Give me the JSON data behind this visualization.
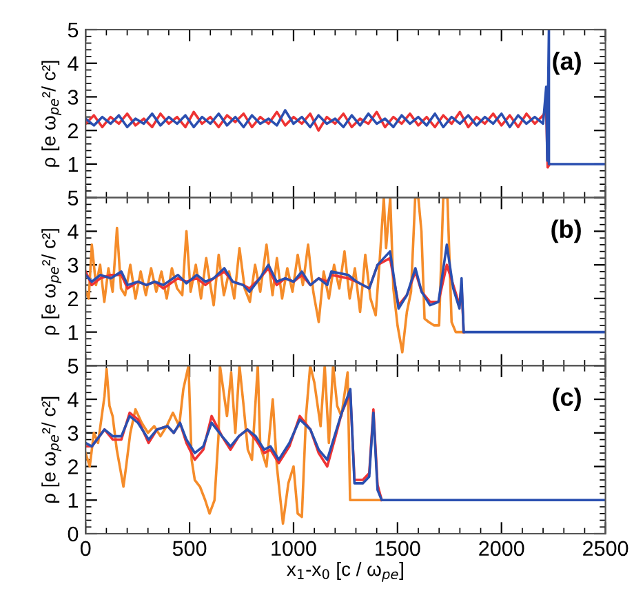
{
  "chart_data": [
    {
      "type": "line",
      "xlim": [
        0,
        2500
      ],
      "xticks": [
        0,
        500,
        1000,
        1500,
        2000,
        2500
      ],
      "ylim": [
        0,
        5
      ],
      "yticks": [
        {
          "value": 0,
          "label": null
        },
        1,
        2,
        3,
        4,
        5
      ],
      "tick_labels": "y",
      "ylabel": "ρ [e ω$_{pe}$²/ c²]",
      "annotations": [
        "(a)"
      ],
      "series": [
        {
          "color": "#ee3333",
          "x": [
            0,
            40,
            80,
            120,
            160,
            200,
            240,
            280,
            320,
            360,
            400,
            440,
            480,
            520,
            560,
            600,
            640,
            680,
            720,
            760,
            800,
            840,
            880,
            920,
            960,
            1000,
            1040,
            1080,
            1120,
            1160,
            1200,
            1240,
            1280,
            1320,
            1360,
            1400,
            1440,
            1480,
            1520,
            1560,
            1600,
            1640,
            1680,
            1720,
            1760,
            1800,
            1840,
            1880,
            1920,
            1960,
            2000,
            2040,
            2080,
            2120,
            2160,
            2200,
            2215,
            2222,
            2232
          ],
          "values": [
            2.2,
            2.45,
            2.1,
            2.4,
            2.2,
            2.5,
            2.15,
            2.35,
            2.1,
            2.5,
            2.2,
            2.4,
            2.1,
            2.55,
            2.2,
            2.4,
            2.1,
            2.45,
            2.25,
            2.5,
            2.1,
            2.4,
            2.2,
            2.55,
            2.15,
            2.4,
            2.2,
            2.5,
            2.0,
            2.4,
            2.2,
            2.5,
            2.1,
            2.35,
            2.2,
            2.55,
            2.1,
            2.4,
            2.2,
            2.5,
            2.15,
            2.4,
            2.1,
            2.45,
            2.2,
            2.55,
            2.1,
            2.4,
            2.2,
            2.5,
            2.15,
            2.45,
            2.1,
            2.5,
            2.2,
            2.45,
            2.6,
            0.9,
            1.0
          ]
        },
        {
          "color": "#2a4fb0",
          "x": [
            0,
            40,
            80,
            120,
            160,
            200,
            240,
            280,
            320,
            360,
            400,
            440,
            480,
            520,
            560,
            600,
            640,
            680,
            720,
            760,
            800,
            840,
            880,
            920,
            960,
            1000,
            1040,
            1080,
            1120,
            1160,
            1200,
            1240,
            1280,
            1320,
            1360,
            1400,
            1440,
            1480,
            1520,
            1560,
            1600,
            1640,
            1680,
            1720,
            1760,
            1800,
            1840,
            1880,
            1920,
            1960,
            2000,
            2040,
            2080,
            2120,
            2160,
            2200,
            2215,
            2220,
            2228,
            2228,
            2500
          ],
          "values": [
            2.35,
            2.15,
            2.4,
            2.2,
            2.45,
            2.1,
            2.35,
            2.2,
            2.5,
            2.15,
            2.4,
            2.2,
            2.45,
            2.1,
            2.4,
            2.2,
            2.5,
            2.15,
            2.4,
            2.1,
            2.45,
            2.2,
            2.35,
            2.15,
            2.6,
            2.2,
            2.4,
            2.1,
            2.45,
            2.2,
            2.35,
            2.1,
            2.45,
            2.15,
            2.5,
            2.2,
            2.35,
            2.1,
            2.45,
            2.2,
            2.4,
            2.15,
            2.5,
            2.1,
            2.4,
            2.2,
            2.45,
            2.15,
            2.4,
            2.2,
            2.5,
            2.1,
            2.45,
            2.2,
            2.4,
            2.2,
            3.3,
            1.1,
            5.0,
            1.0,
            1.0
          ]
        }
      ]
    },
    {
      "type": "line",
      "xlim": [
        0,
        2500
      ],
      "xticks": [
        0,
        500,
        1000,
        1500,
        2000,
        2500
      ],
      "ylim": [
        0,
        5
      ],
      "yticks": [
        {
          "value": 0,
          "label": null
        },
        1,
        2,
        3,
        4,
        5
      ],
      "tick_labels": "y",
      "ylabel": "ρ [e ω$_{pe}$²/ c²]",
      "annotations": [
        "(b)"
      ],
      "series": [
        {
          "color": "#f58c2a",
          "x": [
            0,
            15,
            30,
            50,
            70,
            90,
            110,
            130,
            151,
            170,
            190,
            215,
            240,
            265,
            290,
            315,
            340,
            365,
            390,
            415,
            440,
            465,
            485,
            505,
            530,
            555,
            580,
            600,
            616,
            640,
            665,
            690,
            715,
            740,
            765,
            790,
            815,
            840,
            870,
            899,
            920,
            945,
            970,
            995,
            1020,
            1045,
            1070,
            1095,
            1121,
            1145,
            1170,
            1195,
            1220,
            1245,
            1270,
            1295,
            1320,
            1345,
            1370,
            1395,
            1415,
            1434,
            1445,
            1465,
            1480,
            1500,
            1523,
            1545,
            1565,
            1585,
            1600,
            1615,
            1630,
            1650,
            1675,
            1700,
            1720,
            1740,
            1760,
            1780,
            1818
          ],
          "values": [
            2.2,
            2.0,
            3.6,
            2.4,
            3.0,
            1.9,
            2.9,
            2.2,
            4.1,
            2.3,
            2.1,
            3.0,
            2.0,
            2.8,
            2.1,
            2.9,
            2.2,
            2.8,
            2.0,
            2.9,
            2.3,
            2.1,
            4.0,
            2.2,
            3.0,
            2.0,
            3.2,
            2.4,
            1.8,
            3.3,
            2.1,
            2.8,
            2.0,
            3.5,
            2.3,
            1.9,
            3.0,
            2.2,
            3.6,
            2.1,
            3.2,
            2.0,
            2.9,
            2.2,
            3.3,
            2.4,
            3.6,
            2.2,
            1.3,
            2.8,
            2.0,
            3.0,
            2.3,
            3.4,
            2.0,
            2.9,
            1.6,
            3.3,
            2.0,
            1.5,
            3.2,
            5.0,
            3.5,
            5.0,
            2.3,
            1.2,
            0.4,
            1.6,
            2.2,
            5.0,
            5.0,
            4.0,
            1.4,
            1.3,
            1.2,
            1.2,
            5.0,
            5.0,
            1.3,
            1.0,
            1.0
          ]
        },
        {
          "color": "#ee3333",
          "x": [
            0,
            30,
            71,
            121,
            172,
            202,
            252,
            293,
            333,
            374,
            444,
            485,
            535,
            576,
            616,
            667,
            707,
            758,
            788,
            838,
            879,
            919,
            960,
            1000,
            1040,
            1081,
            1121,
            1162,
            1182,
            1263,
            1303,
            1364,
            1404,
            1464,
            1505,
            1545,
            1586,
            1616,
            1656,
            1697,
            1737,
            1768,
            1798,
            1808,
            1818
          ],
          "values": [
            2.8,
            2.4,
            2.6,
            2.7,
            2.7,
            2.3,
            2.5,
            2.4,
            2.5,
            2.3,
            2.6,
            2.5,
            2.6,
            2.4,
            2.6,
            2.8,
            2.5,
            2.4,
            2.3,
            2.6,
            2.9,
            2.4,
            2.6,
            2.5,
            2.7,
            2.4,
            2.6,
            2.5,
            2.7,
            2.6,
            2.5,
            2.3,
            3.0,
            3.2,
            1.8,
            2.1,
            2.8,
            2.2,
            1.9,
            1.9,
            3.0,
            2.4,
            1.8,
            2.4,
            1.0
          ]
        },
        {
          "color": "#2a4fb0",
          "x": [
            0,
            30,
            71,
            121,
            172,
            202,
            252,
            293,
            333,
            374,
            444,
            485,
            535,
            576,
            616,
            667,
            707,
            758,
            788,
            838,
            879,
            919,
            960,
            1000,
            1040,
            1081,
            1121,
            1162,
            1182,
            1263,
            1303,
            1364,
            1404,
            1464,
            1505,
            1545,
            1586,
            1616,
            1656,
            1697,
            1737,
            1768,
            1798,
            1808,
            1818,
            2500
          ],
          "values": [
            2.7,
            2.5,
            2.7,
            2.6,
            2.8,
            2.4,
            2.5,
            2.4,
            2.5,
            2.4,
            2.7,
            2.45,
            2.7,
            2.5,
            2.6,
            2.9,
            2.5,
            2.4,
            2.2,
            2.6,
            3.0,
            2.5,
            2.6,
            2.5,
            2.8,
            2.4,
            2.6,
            2.4,
            2.8,
            2.7,
            2.5,
            2.3,
            3.0,
            3.4,
            1.7,
            2.1,
            2.9,
            2.2,
            1.8,
            1.9,
            3.6,
            2.3,
            1.7,
            2.6,
            1.0,
            1.0
          ]
        }
      ]
    },
    {
      "type": "line",
      "xlim": [
        0,
        2500
      ],
      "xticks": [
        0,
        500,
        1000,
        1500,
        2000,
        2500
      ],
      "ylim": [
        0,
        5
      ],
      "yticks": [
        0,
        1,
        2,
        3,
        4,
        5
      ],
      "xlabel": "x$_{1}$-x$_{0}$ [c / ω$_{pe}$]",
      "ylabel": "ρ [e ω$_{pe}$²/ c²]",
      "annotations": [
        "(c)"
      ],
      "series": [
        {
          "color": "#f58c2a",
          "x": [
            0,
            20,
            40,
            60,
            91,
            101,
            115,
            130,
            150,
            182,
            195,
            215,
            240,
            270,
            300,
            330,
            360,
            390,
            420,
            450,
            470,
            495,
            510,
            525,
            550,
            575,
            596,
            620,
            640,
            646,
            680,
            700,
            720,
            740,
            760,
            780,
            800,
            828,
            840,
            870,
            900,
            920,
            949,
            975,
            1000,
            1020,
            1040,
            1060,
            1080,
            1100,
            1130,
            1150,
            1170,
            1190,
            1210,
            1230,
            1260,
            1272,
            1424
          ],
          "values": [
            2.4,
            2.0,
            3.0,
            2.7,
            4.1,
            4.9,
            3.8,
            3.5,
            2.5,
            1.4,
            2.0,
            3.0,
            3.7,
            3.3,
            3.0,
            3.2,
            2.9,
            3.2,
            3.6,
            3.2,
            4.3,
            5.0,
            2.2,
            1.6,
            1.4,
            1.0,
            0.6,
            1.0,
            3.0,
            5.0,
            3.5,
            4.8,
            3.0,
            5.0,
            3.8,
            2.5,
            2.2,
            5.0,
            2.6,
            2.0,
            4.0,
            2.0,
            0.3,
            1.5,
            2.0,
            0.6,
            0.5,
            3.5,
            5.0,
            4.5,
            3.2,
            5.0,
            2.7,
            5.0,
            3.8,
            3.5,
            4.8,
            1.0,
            1.0
          ]
        },
        {
          "color": "#ee3333",
          "x": [
            0,
            30,
            91,
            131,
            172,
            212,
            252,
            303,
            343,
            394,
            424,
            454,
            485,
            525,
            566,
            606,
            656,
            697,
            737,
            778,
            818,
            859,
            889,
            929,
            980,
            1030,
            1081,
            1121,
            1162,
            1202,
            1232,
            1273,
            1293,
            1333,
            1364,
            1384,
            1404,
            1424
          ],
          "values": [
            2.6,
            2.6,
            3.1,
            2.8,
            2.8,
            3.6,
            3.4,
            2.7,
            3.1,
            3.2,
            3.0,
            3.3,
            2.7,
            2.2,
            2.5,
            3.5,
            2.9,
            2.5,
            2.9,
            3.1,
            2.8,
            2.4,
            2.5,
            2.1,
            2.6,
            3.5,
            3.1,
            2.4,
            2.0,
            2.9,
            3.6,
            4.2,
            1.6,
            1.6,
            1.8,
            3.7,
            1.45,
            1.0
          ]
        },
        {
          "color": "#2a4fb0",
          "x": [
            0,
            30,
            91,
            131,
            172,
            212,
            252,
            303,
            343,
            394,
            424,
            454,
            485,
            525,
            566,
            606,
            656,
            697,
            737,
            778,
            818,
            859,
            889,
            929,
            980,
            1030,
            1081,
            1121,
            1162,
            1202,
            1232,
            1273,
            1293,
            1333,
            1364,
            1384,
            1404,
            1424,
            2500
          ],
          "values": [
            2.7,
            2.6,
            3.1,
            2.9,
            2.9,
            3.5,
            3.3,
            2.8,
            3.1,
            3.2,
            3.0,
            3.3,
            2.8,
            2.4,
            2.6,
            3.3,
            2.9,
            2.6,
            2.9,
            3.1,
            2.9,
            2.5,
            2.6,
            2.2,
            2.7,
            3.4,
            3.1,
            2.5,
            2.2,
            3.0,
            3.6,
            4.3,
            1.5,
            1.5,
            1.7,
            3.6,
            1.3,
            1.0,
            1.0
          ]
        }
      ]
    }
  ]
}
